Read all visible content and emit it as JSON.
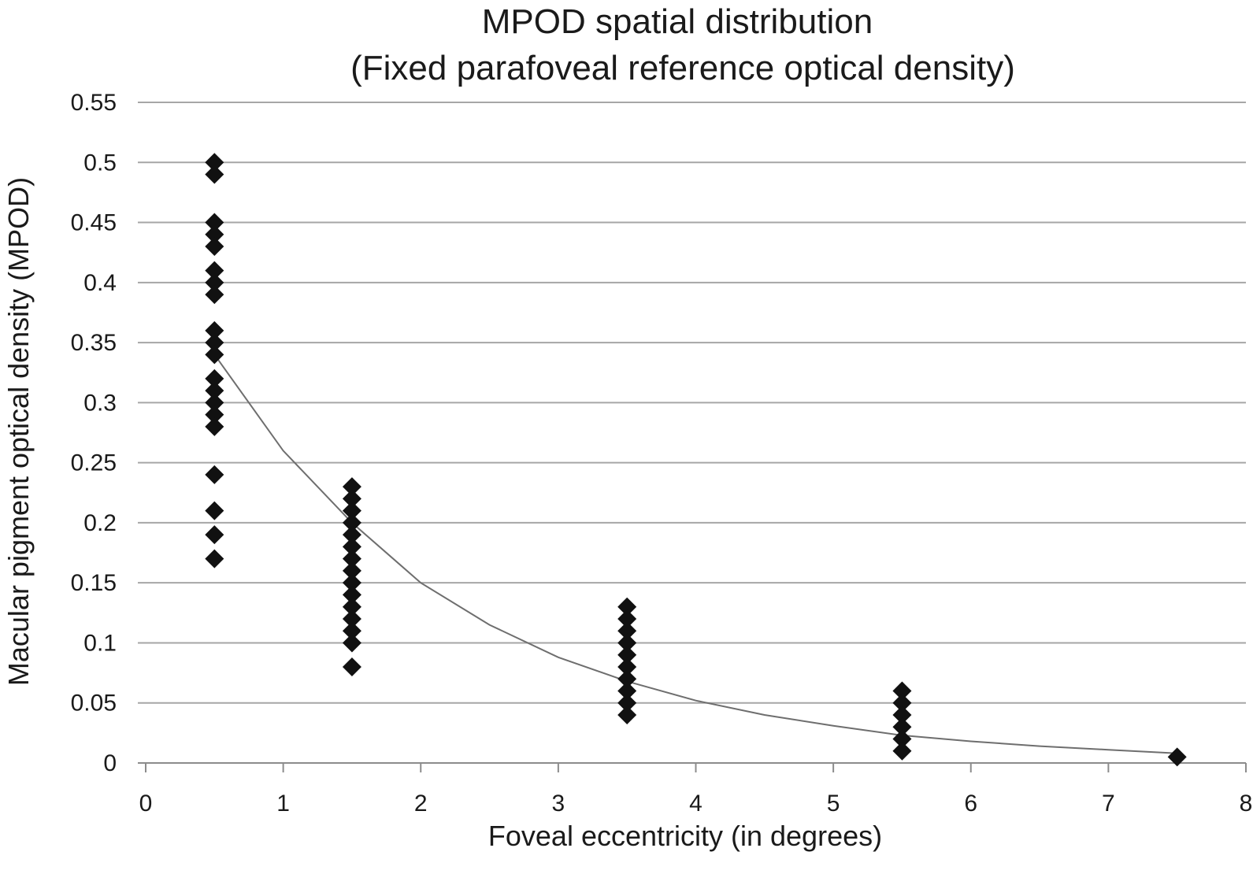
{
  "chart_data": {
    "type": "scatter",
    "title": "MPOD spatial distribution",
    "subtitle": "(Fixed parafoveal reference optical density)",
    "xlabel": "Foveal eccentricity (in degrees)",
    "ylabel": "Macular pigment optical density (MPOD)",
    "xlim": [
      0,
      8
    ],
    "ylim": [
      0,
      0.55
    ],
    "x_ticks": [
      "0",
      "1",
      "2",
      "3",
      "4",
      "5",
      "6",
      "7",
      "8"
    ],
    "y_ticks": [
      "0",
      "0.05",
      "0.1",
      "0.15",
      "0.2",
      "0.25",
      "0.3",
      "0.35",
      "0.4",
      "0.45",
      "0.5",
      "0.55"
    ],
    "grid": "horizontal",
    "marker": "diamond",
    "marker_color": "#111111",
    "trendline_color": "#6e6e6e",
    "series": [
      {
        "points": [
          {
            "x": 0.5,
            "y": 0.5
          },
          {
            "x": 0.5,
            "y": 0.49
          },
          {
            "x": 0.5,
            "y": 0.45
          },
          {
            "x": 0.5,
            "y": 0.44
          },
          {
            "x": 0.5,
            "y": 0.43
          },
          {
            "x": 0.5,
            "y": 0.41
          },
          {
            "x": 0.5,
            "y": 0.4
          },
          {
            "x": 0.5,
            "y": 0.39
          },
          {
            "x": 0.5,
            "y": 0.36
          },
          {
            "x": 0.5,
            "y": 0.35
          },
          {
            "x": 0.5,
            "y": 0.34
          },
          {
            "x": 0.5,
            "y": 0.32
          },
          {
            "x": 0.5,
            "y": 0.31
          },
          {
            "x": 0.5,
            "y": 0.3
          },
          {
            "x": 0.5,
            "y": 0.29
          },
          {
            "x": 0.5,
            "y": 0.28
          },
          {
            "x": 0.5,
            "y": 0.24
          },
          {
            "x": 0.5,
            "y": 0.21
          },
          {
            "x": 0.5,
            "y": 0.19
          },
          {
            "x": 0.5,
            "y": 0.17
          },
          {
            "x": 1.5,
            "y": 0.23
          },
          {
            "x": 1.5,
            "y": 0.22
          },
          {
            "x": 1.5,
            "y": 0.21
          },
          {
            "x": 1.5,
            "y": 0.2
          },
          {
            "x": 1.5,
            "y": 0.19
          },
          {
            "x": 1.5,
            "y": 0.18
          },
          {
            "x": 1.5,
            "y": 0.17
          },
          {
            "x": 1.5,
            "y": 0.16
          },
          {
            "x": 1.5,
            "y": 0.15
          },
          {
            "x": 1.5,
            "y": 0.14
          },
          {
            "x": 1.5,
            "y": 0.13
          },
          {
            "x": 1.5,
            "y": 0.12
          },
          {
            "x": 1.5,
            "y": 0.11
          },
          {
            "x": 1.5,
            "y": 0.1
          },
          {
            "x": 1.5,
            "y": 0.08
          },
          {
            "x": 3.5,
            "y": 0.13
          },
          {
            "x": 3.5,
            "y": 0.12
          },
          {
            "x": 3.5,
            "y": 0.11
          },
          {
            "x": 3.5,
            "y": 0.1
          },
          {
            "x": 3.5,
            "y": 0.09
          },
          {
            "x": 3.5,
            "y": 0.08
          },
          {
            "x": 3.5,
            "y": 0.07
          },
          {
            "x": 3.5,
            "y": 0.06
          },
          {
            "x": 3.5,
            "y": 0.05
          },
          {
            "x": 3.5,
            "y": 0.04
          },
          {
            "x": 5.5,
            "y": 0.06
          },
          {
            "x": 5.5,
            "y": 0.05
          },
          {
            "x": 5.5,
            "y": 0.04
          },
          {
            "x": 5.5,
            "y": 0.03
          },
          {
            "x": 5.5,
            "y": 0.02
          },
          {
            "x": 5.5,
            "y": 0.01
          },
          {
            "x": 7.5,
            "y": 0.005
          }
        ]
      }
    ],
    "trendline": {
      "type": "exponential",
      "points": [
        {
          "x": 0.5,
          "y": 0.34
        },
        {
          "x": 1.0,
          "y": 0.26
        },
        {
          "x": 1.5,
          "y": 0.2
        },
        {
          "x": 2.0,
          "y": 0.15
        },
        {
          "x": 2.5,
          "y": 0.115
        },
        {
          "x": 3.0,
          "y": 0.088
        },
        {
          "x": 3.5,
          "y": 0.068
        },
        {
          "x": 4.0,
          "y": 0.052
        },
        {
          "x": 4.5,
          "y": 0.04
        },
        {
          "x": 5.0,
          "y": 0.031
        },
        {
          "x": 5.5,
          "y": 0.023
        },
        {
          "x": 6.0,
          "y": 0.018
        },
        {
          "x": 6.5,
          "y": 0.014
        },
        {
          "x": 7.0,
          "y": 0.011
        },
        {
          "x": 7.5,
          "y": 0.008
        }
      ]
    }
  }
}
